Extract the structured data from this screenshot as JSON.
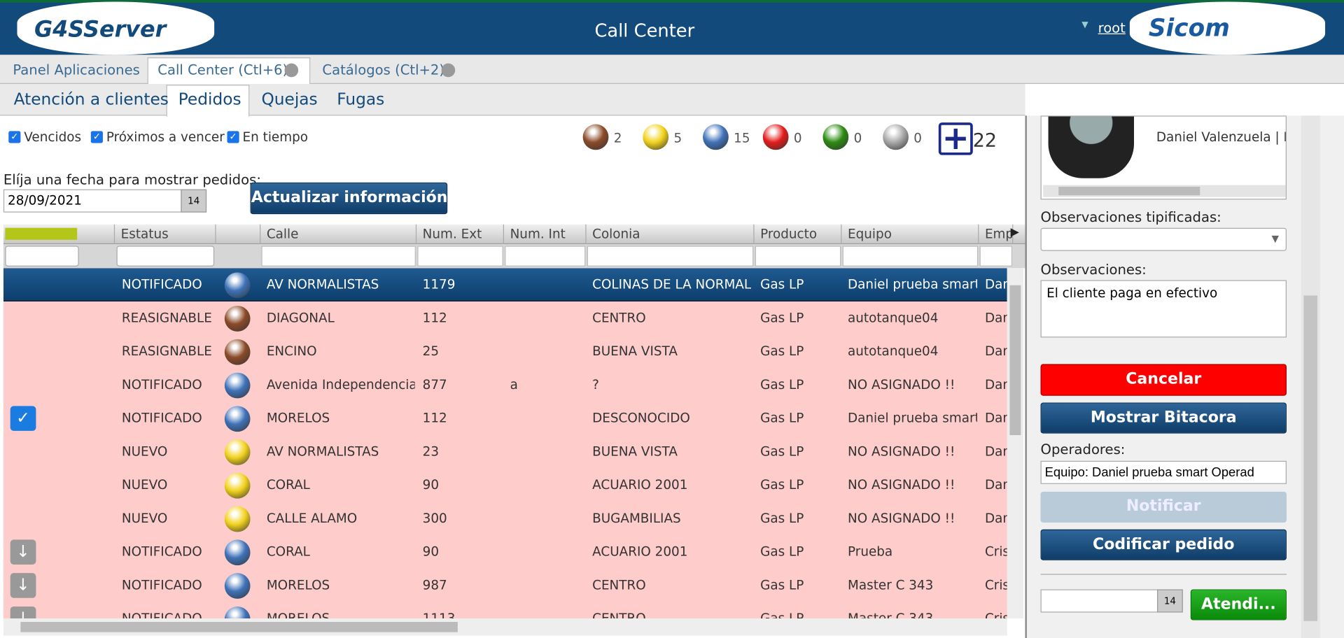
{
  "header": {
    "logo_left": "G4SServer",
    "title": "Call Center",
    "user": "root",
    "logo_right": "Sicom"
  },
  "tabs": [
    "Panel Aplicaciones",
    "Call Center (Ctl+6)",
    "Catálogos (Ctl+2)"
  ],
  "subtabs": [
    "Atención a clientes",
    "Pedidos",
    "Quejas",
    "Fugas"
  ],
  "filters": [
    "Vencidos",
    "Próximos a vencer",
    "En tiempo"
  ],
  "counters": [
    {
      "color": "#8b4a28",
      "count": "2"
    },
    {
      "color": "#f2d21b",
      "count": "5"
    },
    {
      "color": "#3f72b8",
      "count": "15"
    },
    {
      "color": "#e31b1b",
      "count": "0"
    },
    {
      "color": "#2c8a12",
      "count": "0"
    },
    {
      "color": "#a8a8a8",
      "count": "0"
    }
  ],
  "total": "22",
  "date_label": "Elíja una fecha para mostrar pedidos:",
  "date_value": "28/09/2021",
  "update_button": "Actualizar información",
  "table": {
    "columns": [
      "Estatus",
      "Calle",
      "Num. Ext",
      "Num. Int",
      "Colonia",
      "Producto",
      "Equipo",
      "Empresa"
    ],
    "rows": [
      {
        "marker": "",
        "status": "NOTIFICADO",
        "ball": "#3f72b8",
        "cells": [
          "AV NORMALISTAS",
          "1179",
          "",
          "COLINAS DE LA NORMAL",
          "Gas LP",
          "Daniel prueba smart",
          "Dan"
        ]
      },
      {
        "marker": "",
        "status": "REASIGNABLE",
        "ball": "#8b4a28",
        "cells": [
          "DIAGONAL",
          "112",
          "",
          "CENTRO",
          "Gas LP",
          "autotanque04",
          "Dan"
        ]
      },
      {
        "marker": "",
        "status": "REASIGNABLE",
        "ball": "#8b4a28",
        "cells": [
          "ENCINO",
          "25",
          "",
          "BUENA VISTA",
          "Gas LP",
          "autotanque04",
          "Dan"
        ]
      },
      {
        "marker": "",
        "status": "NOTIFICADO",
        "ball": "#3f72b8",
        "cells": [
          "Avenida Independencia",
          "877",
          "a",
          "?",
          "Gas LP",
          "NO ASIGNADO !!",
          "Dan"
        ]
      },
      {
        "marker": "check",
        "status": "NOTIFICADO",
        "ball": "#3f72b8",
        "cells": [
          "MORELOS",
          "112",
          "",
          "DESCONOCIDO",
          "Gas LP",
          "Daniel prueba smart",
          "Dan"
        ]
      },
      {
        "marker": "",
        "status": "NUEVO",
        "ball": "#f2d21b",
        "cells": [
          "AV NORMALISTAS",
          "23",
          "",
          "BUENA VISTA",
          "Gas LP",
          "NO ASIGNADO !!",
          "Dan"
        ]
      },
      {
        "marker": "",
        "status": "NUEVO",
        "ball": "#f2d21b",
        "cells": [
          "CORAL",
          "90",
          "",
          "ACUARIO 2001",
          "Gas LP",
          "NO ASIGNADO !!",
          "Dan"
        ]
      },
      {
        "marker": "",
        "status": "NUEVO",
        "ball": "#f2d21b",
        "cells": [
          "CALLE ALAMO",
          "300",
          "",
          "BUGAMBILIAS",
          "Gas LP",
          "NO ASIGNADO !!",
          "Dan"
        ]
      },
      {
        "marker": "down",
        "status": "NOTIFICADO",
        "ball": "#3f72b8",
        "cells": [
          "CORAL",
          "90",
          "",
          "ACUARIO 2001",
          "Gas LP",
          "Prueba",
          "Cris"
        ]
      },
      {
        "marker": "down",
        "status": "NOTIFICADO",
        "ball": "#3f72b8",
        "cells": [
          "MORELOS",
          "987",
          "",
          "CENTRO",
          "Gas LP",
          "Master C 343",
          "Cris"
        ]
      },
      {
        "marker": "down",
        "status": "NOTIFICADO",
        "ball": "#3f72b8",
        "cells": [
          "MORELOS",
          "1113",
          "",
          "CENTRO",
          "Gas LP",
          "Master C 343",
          "Cris"
        ]
      }
    ]
  },
  "panel": {
    "client_name": "Daniel Valenzuela | Da",
    "obs_typed_label": "Observaciones tipificadas:",
    "obs_label": "Observaciones:",
    "obs_text": "El cliente paga en efectivo",
    "cancel": "Cancelar",
    "log": "Mostrar Bitacora",
    "operators_label": "Operadores:",
    "operator_value": "Equipo: Daniel prueba smart Operad",
    "notify": "Notificar",
    "encode": "Codificar pedido",
    "attend": "Atendi..."
  }
}
